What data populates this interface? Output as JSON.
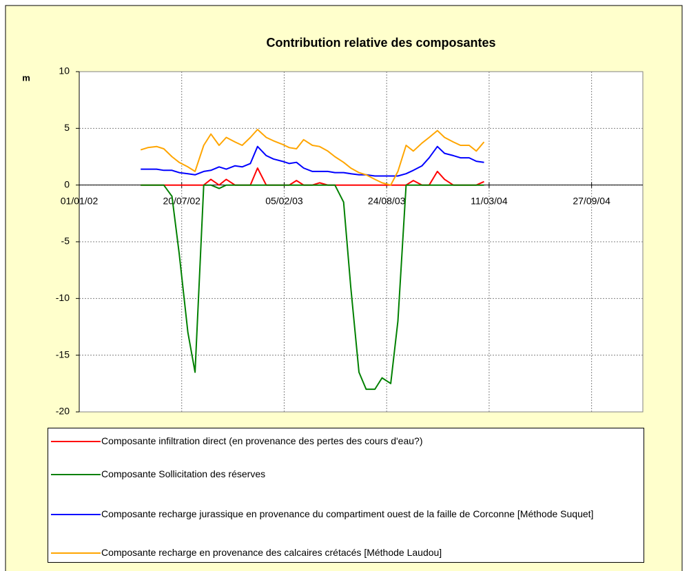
{
  "chart_data": {
    "type": "line",
    "title": "Contribution relative des composantes",
    "y_label": "m",
    "xlim": [
      "01/01/02",
      "05/01/05"
    ],
    "xticks": [
      "01/01/02",
      "20/07/02",
      "05/02/03",
      "24/08/03",
      "11/03/04",
      "27/09/04"
    ],
    "ylim": [
      -20,
      10
    ],
    "yticks": [
      10,
      5,
      0,
      -5,
      -10,
      -15,
      -20
    ],
    "grid": true,
    "legend": "bottom",
    "x": [
      "01/05/02",
      "15/05/02",
      "01/06/02",
      "15/06/02",
      "01/07/02",
      "15/07/02",
      "01/08/02",
      "15/08/02",
      "01/09/02",
      "15/09/02",
      "01/10/02",
      "15/10/02",
      "01/11/02",
      "15/11/02",
      "01/12/02",
      "15/12/02",
      "01/01/03",
      "15/01/03",
      "01/02/03",
      "15/02/03",
      "01/03/03",
      "15/03/03",
      "01/04/03",
      "15/04/03",
      "01/05/03",
      "15/05/03",
      "01/06/03",
      "15/06/03",
      "01/07/03",
      "15/07/03",
      "01/08/03",
      "15/08/03",
      "01/09/03",
      "15/09/03",
      "01/10/03",
      "15/10/03",
      "01/11/03",
      "15/11/03",
      "01/12/03",
      "15/12/03",
      "01/01/04",
      "15/01/04",
      "01/02/04",
      "15/02/04",
      "01/03/04"
    ],
    "series": [
      {
        "name": "Composante infiltration direct (en provenance des pertes des cours d'eau?)",
        "color": "#ff0000",
        "values": [
          0,
          0,
          0,
          0,
          0,
          0,
          0,
          0,
          0,
          0.5,
          0,
          0.5,
          0,
          0,
          0,
          1.5,
          0,
          0,
          0,
          0,
          0.4,
          0,
          0,
          0.2,
          0,
          0,
          0,
          0,
          0,
          0,
          0,
          0,
          0,
          0,
          0,
          0.4,
          0,
          0,
          1.2,
          0.5,
          0,
          0,
          0,
          0,
          0.3
        ]
      },
      {
        "name": "Composante Sollicitation des réserves",
        "color": "#008000",
        "values": [
          0,
          0,
          0,
          0,
          -1,
          -6,
          -13,
          -16.5,
          0,
          0,
          -0.3,
          0,
          0,
          0,
          0,
          0,
          0,
          0,
          0,
          0,
          0,
          0,
          0,
          0,
          0,
          0,
          -1.5,
          -9,
          -16.5,
          -18,
          -18,
          -17,
          -17.5,
          -12,
          0,
          0,
          0,
          0,
          0,
          0,
          0,
          0,
          0,
          0,
          0
        ]
      },
      {
        "name": "Composante recharge jurassique en provenance du compartiment ouest de la faille de Corconne [Méthode Suquet]",
        "color": "#0000ff",
        "values": [
          1.4,
          1.4,
          1.4,
          1.3,
          1.3,
          1.1,
          1.0,
          0.9,
          1.2,
          1.3,
          1.6,
          1.4,
          1.7,
          1.6,
          1.9,
          3.4,
          2.6,
          2.3,
          2.1,
          1.9,
          2.0,
          1.5,
          1.2,
          1.2,
          1.2,
          1.1,
          1.1,
          1.0,
          0.9,
          0.9,
          0.8,
          0.8,
          0.8,
          0.8,
          1.0,
          1.3,
          1.7,
          2.4,
          3.4,
          2.8,
          2.6,
          2.4,
          2.4,
          2.1,
          2.0
        ]
      },
      {
        "name": "Composante recharge en provenance des calcaires crétacés [Méthode Laudou]",
        "color": "#ffa500",
        "values": [
          3.1,
          3.3,
          3.4,
          3.2,
          2.5,
          2.0,
          1.6,
          1.2,
          3.5,
          4.5,
          3.5,
          4.2,
          3.8,
          3.5,
          4.2,
          4.9,
          4.2,
          3.9,
          3.6,
          3.3,
          3.2,
          4.0,
          3.5,
          3.4,
          3.0,
          2.5,
          2.0,
          1.5,
          1.1,
          0.9,
          0.5,
          0.2,
          0.0,
          1.2,
          3.5,
          3.0,
          3.7,
          4.2,
          4.8,
          4.2,
          3.8,
          3.5,
          3.5,
          3.0,
          3.8
        ]
      }
    ]
  }
}
